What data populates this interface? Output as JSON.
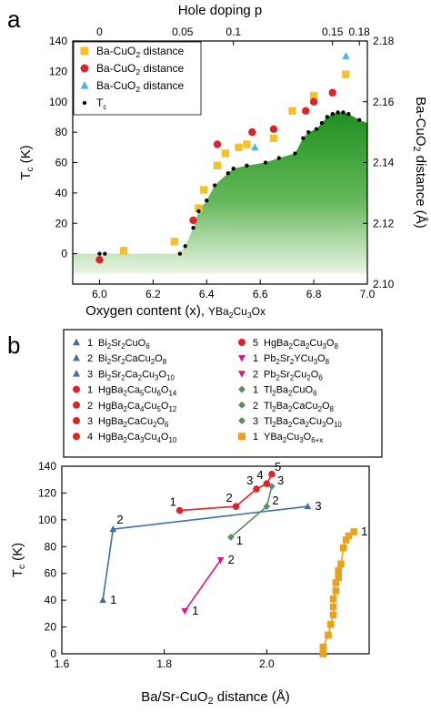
{
  "chart_data": [
    {
      "panel_label": "a",
      "type": "scatter",
      "top_axis": {
        "label": "Hole doping p",
        "ticks": [
          {
            "x": 6.0,
            "label": "0"
          },
          {
            "x": 6.31,
            "label": "0.05"
          },
          {
            "x": 6.5,
            "label": "0.1"
          },
          {
            "x": 6.87,
            "label": "0.15"
          },
          {
            "x": 6.97,
            "label": "0.18"
          }
        ]
      },
      "xlabel_main": "Oxygen content (x),",
      "xlabel_formula": "YBa2Cu3Ox",
      "ylabel": "Tc (K)",
      "y2label": "Ba-CuO2 distance (Å)",
      "xlim": [
        5.9,
        7.0
      ],
      "ylim": [
        -20,
        140
      ],
      "y2lim": [
        2.1,
        2.18
      ],
      "x_ticks": [
        "6.0",
        "6.2",
        "6.4",
        "6.6",
        "6.8",
        "7.0"
      ],
      "y_ticks": [
        "0",
        "20",
        "40",
        "60",
        "80",
        "100",
        "120",
        "140"
      ],
      "y2_ticks": [
        "2.10",
        "2.12",
        "2.14",
        "2.16",
        "2.18"
      ],
      "legend": [
        "Ba-CuO2 distance",
        "Ba-CuO2 distance",
        "Ba-CuO2 distance",
        "Tc"
      ],
      "legend_position": "top-left",
      "colors": {
        "yellow": "#f2c12e",
        "red": "#d9242b",
        "cyan": "#4fb6e3",
        "black": "#000000",
        "green": "#2e9b2e"
      },
      "series": [
        {
          "marker": "square",
          "color": "#f2c12e",
          "axis": "right",
          "x": [
            6.09,
            6.28,
            6.37,
            6.39,
            6.44,
            6.47,
            6.52,
            6.55,
            6.65,
            6.72,
            6.8,
            6.92
          ],
          "y": [
            2.111,
            2.114,
            2.125,
            2.131,
            2.139,
            2.143,
            2.145,
            2.146,
            2.148,
            2.157,
            2.162,
            2.169
          ]
        },
        {
          "marker": "circle",
          "color": "#d9242b",
          "axis": "right",
          "x": [
            6.0,
            6.35,
            6.44,
            6.57,
            6.65,
            6.77,
            6.8,
            6.87
          ],
          "y": [
            2.108,
            2.121,
            2.146,
            2.15,
            2.151,
            2.157,
            2.16,
            2.163
          ]
        },
        {
          "marker": "triangle",
          "color": "#4fb6e3",
          "axis": "right",
          "x": [
            6.58,
            6.92
          ],
          "y": [
            2.145,
            2.175
          ]
        },
        {
          "marker": "dot",
          "color": "#000000",
          "axis": "left",
          "x": [
            6.0,
            6.02,
            6.3,
            6.32,
            6.35,
            6.37,
            6.4,
            6.43,
            6.48,
            6.5,
            6.55,
            6.62,
            6.67,
            6.73,
            6.76,
            6.78,
            6.81,
            6.83,
            6.85,
            6.87,
            6.89,
            6.91,
            6.93,
            6.97
          ],
          "y": [
            0,
            0,
            0,
            5,
            17,
            28,
            35,
            45,
            53,
            56,
            58,
            60,
            63,
            66,
            76,
            80,
            82,
            86,
            90,
            92,
            93,
            93,
            92,
            88
          ]
        }
      ]
    },
    {
      "panel_label": "b",
      "type": "line",
      "xlabel": "Ba/Sr-CuO2 distance (Å)",
      "ylabel": "Tc (K)",
      "xlim": [
        1.6,
        2.2
      ],
      "ylim": [
        0,
        140
      ],
      "x_ticks": [
        "1.6",
        "1.8",
        "2.0"
      ],
      "y_ticks": [
        "0",
        "20",
        "40",
        "60",
        "80",
        "100",
        "120",
        "140"
      ],
      "legend_items": [
        {
          "n": "1",
          "formula": "Bi2Sr2CuO6",
          "marker": "triangle",
          "color": "#3d6fa6"
        },
        {
          "n": "2",
          "formula": "Bi2Sr2CaCu2O8",
          "marker": "triangle",
          "color": "#3d6fa6"
        },
        {
          "n": "3",
          "formula": "Bi2Sr2Ca2Cu3O10",
          "marker": "triangle",
          "color": "#3d6fa6"
        },
        {
          "n": "1",
          "formula": "HgBa2Ca5Cu6O14",
          "marker": "circle",
          "color": "#d9242b"
        },
        {
          "n": "2",
          "formula": "HgBa2Ca4Cu5O12",
          "marker": "circle",
          "color": "#d9242b"
        },
        {
          "n": "3",
          "formula": "HgBa2CaCu2O6",
          "marker": "circle",
          "color": "#d9242b"
        },
        {
          "n": "4",
          "formula": "HgBa2Ca3Cu4O10",
          "marker": "circle",
          "color": "#d9242b"
        },
        {
          "n": "5",
          "formula": "HgBa2Ca2Cu3O8",
          "marker": "circle",
          "color": "#d9242b"
        },
        {
          "n": "1",
          "formula": "Pb2Sr2YCu3O8",
          "marker": "tri-down",
          "color": "#d6188a"
        },
        {
          "n": "2",
          "formula": "Pb2Sr2Cu2O6",
          "marker": "tri-down",
          "color": "#d6188a"
        },
        {
          "n": "1",
          "formula": "Tl2Ba2CuO6",
          "marker": "diamond",
          "color": "#5b8c6a"
        },
        {
          "n": "2",
          "formula": "Tl2Ba2CaCu2O8",
          "marker": "diamond",
          "color": "#5b8c6a"
        },
        {
          "n": "3",
          "formula": "Tl2Ba2Ca2Cu3O10",
          "marker": "diamond",
          "color": "#5b8c6a"
        },
        {
          "n": "1",
          "formula": "YBa2Cu3O6+x",
          "marker": "square",
          "color": "#e8a21c"
        }
      ],
      "series": [
        {
          "family": "Bi",
          "marker": "triangle",
          "color": "#3d6fa6",
          "points": [
            {
              "x": 1.68,
              "y": 40,
              "label": "1"
            },
            {
              "x": 1.7,
              "y": 93,
              "label": "2"
            },
            {
              "x": 2.08,
              "y": 110,
              "label": "3"
            }
          ]
        },
        {
          "family": "Hg",
          "marker": "circle",
          "color": "#d9242b",
          "points": [
            {
              "x": 1.83,
              "y": 107,
              "label": "1"
            },
            {
              "x": 1.94,
              "y": 110,
              "label": "2"
            },
            {
              "x": 1.98,
              "y": 123,
              "label": "3"
            },
            {
              "x": 2.0,
              "y": 127,
              "label": "4"
            },
            {
              "x": 2.01,
              "y": 134,
              "label": "5"
            }
          ]
        },
        {
          "family": "Pb",
          "marker": "tri-down",
          "color": "#d6188a",
          "points": [
            {
              "x": 1.84,
              "y": 32,
              "label": "1"
            },
            {
              "x": 1.91,
              "y": 70,
              "label": "2"
            }
          ]
        },
        {
          "family": "Tl",
          "marker": "diamond",
          "color": "#5b8c6a",
          "points": [
            {
              "x": 1.93,
              "y": 87,
              "label": "1"
            },
            {
              "x": 2.0,
              "y": 110,
              "label": "2"
            },
            {
              "x": 2.01,
              "y": 125,
              "label": "3"
            }
          ]
        },
        {
          "family": "Y",
          "marker": "square",
          "color": "#e8a21c",
          "points": [
            {
              "x": 2.11,
              "y": 0
            },
            {
              "x": 2.11,
              "y": 5
            },
            {
              "x": 2.12,
              "y": 14
            },
            {
              "x": 2.125,
              "y": 22
            },
            {
              "x": 2.13,
              "y": 29
            },
            {
              "x": 2.13,
              "y": 35
            },
            {
              "x": 2.13,
              "y": 41
            },
            {
              "x": 2.135,
              "y": 47
            },
            {
              "x": 2.135,
              "y": 53
            },
            {
              "x": 2.14,
              "y": 57
            },
            {
              "x": 2.14,
              "y": 62
            },
            {
              "x": 2.145,
              "y": 67
            },
            {
              "x": 2.15,
              "y": 79
            },
            {
              "x": 2.155,
              "y": 85
            },
            {
              "x": 2.16,
              "y": 88
            },
            {
              "x": 2.17,
              "y": 91,
              "label": "1"
            }
          ]
        }
      ]
    }
  ]
}
